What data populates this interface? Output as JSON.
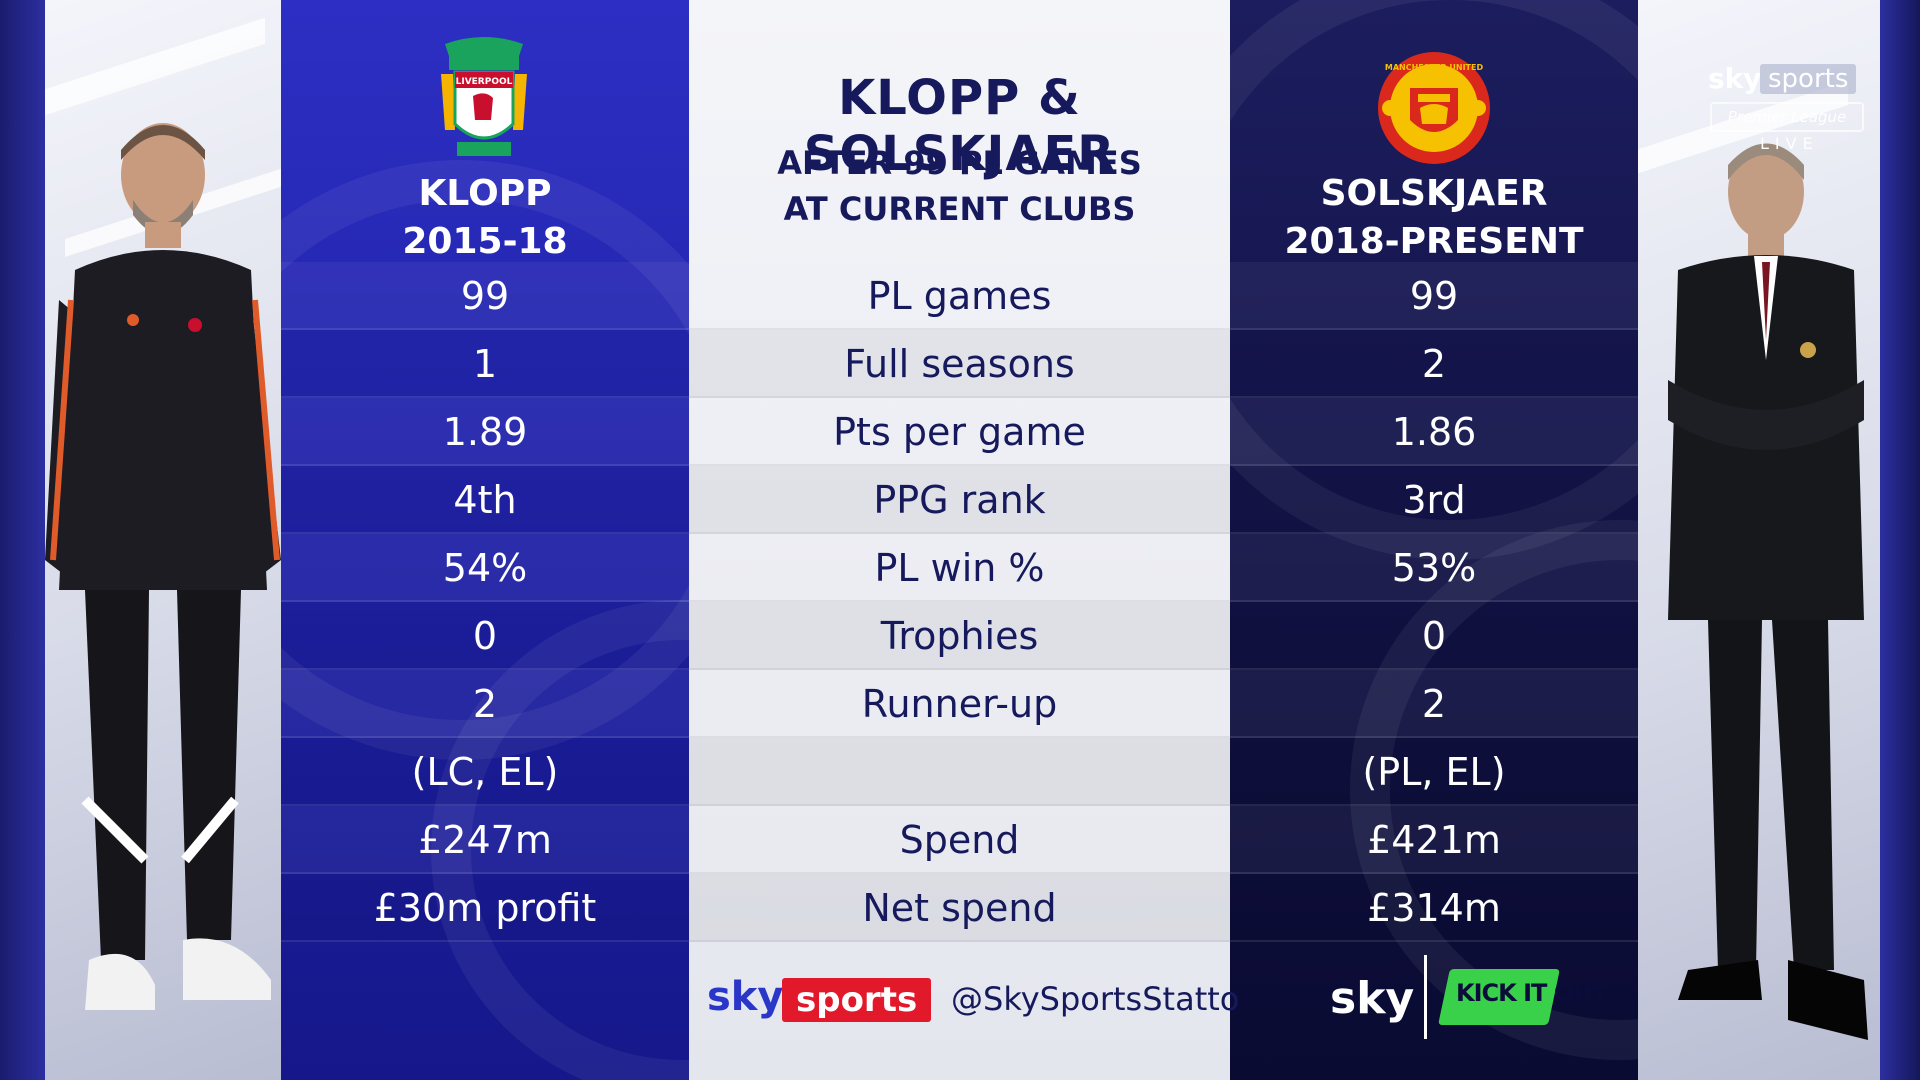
{
  "header": {
    "title": "KLOPP & SOLSKJAER",
    "subtitle_line1": "AFTER 99 PL GAMES",
    "subtitle_line2": "AT CURRENT CLUBS"
  },
  "left_manager": {
    "name": "KLOPP",
    "period": "2015-18",
    "crest": "liverpool-crest",
    "crest_text": "LIVERPOOL",
    "color": "#c8102e"
  },
  "right_manager": {
    "name": "SOLSKJAER",
    "period": "2018-PRESENT",
    "crest": "man-utd-crest",
    "crest_text": "MANCHESTER UNITED",
    "color": "#da291c"
  },
  "stats": [
    {
      "left": "99",
      "label": "PL games",
      "right": "99"
    },
    {
      "left": "1",
      "label": "Full seasons",
      "right": "2"
    },
    {
      "left": "1.89",
      "label": "Pts per game",
      "right": "1.86"
    },
    {
      "left": "4th",
      "label": "PPG rank",
      "right": "3rd"
    },
    {
      "left": "54%",
      "label": "PL win %",
      "right": "53%"
    },
    {
      "left": "0",
      "label": "Trophies",
      "right": "0"
    },
    {
      "left": "2",
      "label": "Runner-up",
      "right": "2"
    },
    {
      "left": "(LC, EL)",
      "label": "",
      "right": "(PL, EL)"
    },
    {
      "left": "£247m",
      "label": "Spend",
      "right": "£421m"
    },
    {
      "left": "£30m profit",
      "label": "Net spend",
      "right": "£314m"
    }
  ],
  "footer": {
    "sky": "sky",
    "sports": "sports",
    "handle": "@SkySportsStatto",
    "sky_right": "sky",
    "kick_it_out": "KICK IT OUT"
  },
  "watermark": {
    "sky": "sky",
    "sports": "sports",
    "league": "Premier League",
    "live": "LIVE"
  },
  "colors": {
    "left_band": "#2326b8",
    "right_band": "#12134a",
    "center_text": "#161a5c",
    "sky_sports_red": "#e1192b",
    "kick_it_out_green": "#3ad14a"
  }
}
